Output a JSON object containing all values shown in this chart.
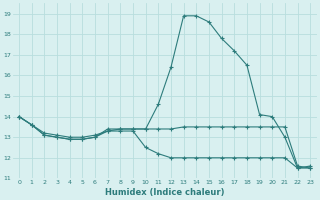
{
  "xlabel": "Humidex (Indice chaleur)",
  "x": [
    0,
    1,
    2,
    3,
    4,
    5,
    6,
    7,
    8,
    9,
    10,
    11,
    12,
    13,
    14,
    15,
    16,
    17,
    18,
    19,
    20,
    21,
    22,
    23
  ],
  "line1": [
    14.0,
    13.6,
    13.1,
    13.0,
    12.9,
    12.9,
    13.0,
    13.4,
    13.4,
    13.4,
    13.4,
    14.6,
    16.4,
    18.9,
    18.9,
    18.6,
    17.8,
    17.2,
    16.5,
    14.1,
    14.0,
    13.0,
    11.5,
    11.6
  ],
  "line2": [
    14.0,
    13.6,
    13.2,
    13.1,
    13.0,
    13.0,
    13.1,
    13.3,
    13.4,
    13.4,
    13.4,
    13.4,
    13.4,
    13.5,
    13.5,
    13.5,
    13.5,
    13.5,
    13.5,
    13.5,
    13.5,
    13.5,
    11.6,
    11.5
  ],
  "line3": [
    14.0,
    13.6,
    13.1,
    13.0,
    12.9,
    12.9,
    13.0,
    13.3,
    13.3,
    13.3,
    12.5,
    12.2,
    12.0,
    12.0,
    12.0,
    12.0,
    12.0,
    12.0,
    12.0,
    12.0,
    12.0,
    12.0,
    11.5,
    11.5
  ],
  "line_color": "#2d7c7c",
  "bg_color": "#d9f0f0",
  "grid_color": "#b8dede",
  "ylim": [
    11,
    19.5
  ],
  "xlim": [
    -0.5,
    23.5
  ],
  "yticks": [
    11,
    12,
    13,
    14,
    15,
    16,
    17,
    18,
    19
  ],
  "xticks": [
    0,
    1,
    2,
    3,
    4,
    5,
    6,
    7,
    8,
    9,
    10,
    11,
    12,
    13,
    14,
    15,
    16,
    17,
    18,
    19,
    20,
    21,
    22,
    23
  ]
}
